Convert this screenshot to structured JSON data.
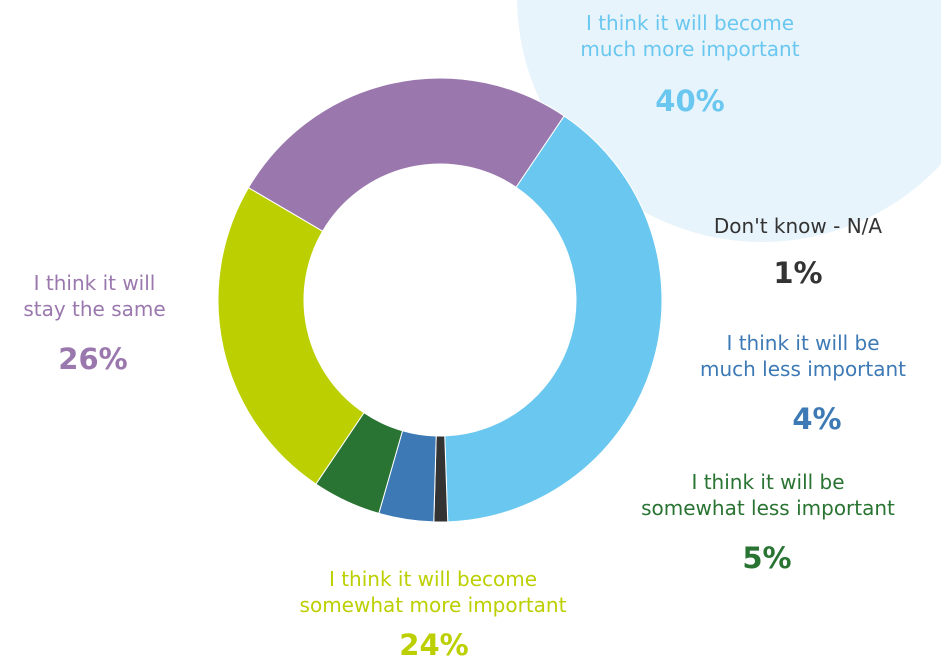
{
  "chart_data": {
    "type": "pie",
    "title": "",
    "categories": [
      "I think it will become much more important",
      "Don't know - N/A",
      "I think it will be much less important",
      "I think it will be somewhat less important",
      "I think it will become somewhat more important",
      "I think it will stay the same"
    ],
    "values": [
      40,
      1,
      4,
      5,
      24,
      26
    ],
    "value_labels": [
      "40%",
      "1%",
      "4%",
      "5%",
      "24%",
      "26%"
    ],
    "label_lines": [
      [
        "I think it will become",
        "much more important"
      ],
      [
        "Don't know - N/A"
      ],
      [
        "I think it will be",
        "much less important"
      ],
      [
        "I think it will be",
        "somewhat less important"
      ],
      [
        "I think it will become",
        "somewhat more important"
      ],
      [
        "I think it will",
        "stay the same"
      ]
    ],
    "colors": [
      "#6ac7f0",
      "#333333",
      "#3d7ab5",
      "#2a7433",
      "#bccf00",
      "#9a78ad"
    ],
    "highlight_color": "#e8f4fb",
    "style": "donut",
    "legend": "none"
  }
}
